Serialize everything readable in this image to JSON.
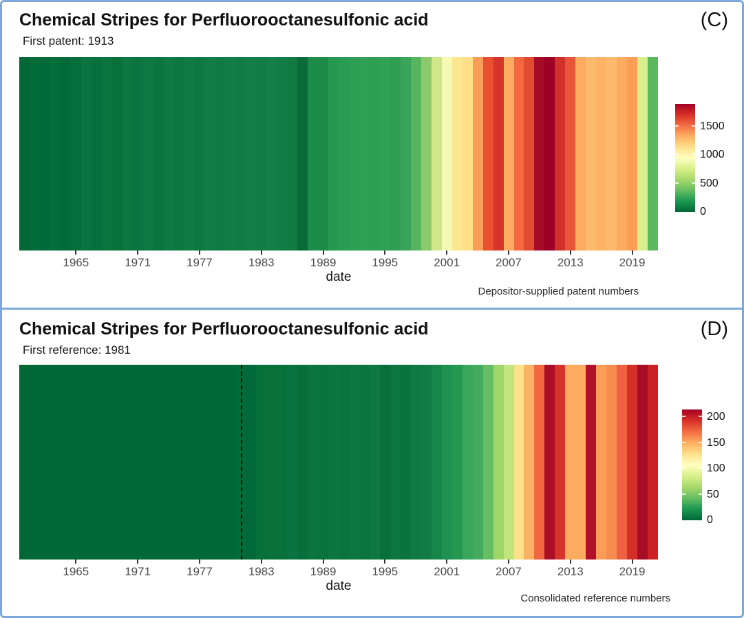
{
  "frame": {
    "border_color": "#7ba7d9"
  },
  "chart_data": [
    {
      "type": "heatmap",
      "panel_label": "(C)",
      "title": "Chemical Stripes for Perfluorooctanesulfonic acid",
      "subtitle": "First patent: 1913",
      "xlabel": "date",
      "caption": "Depositor-supplied patent numbers",
      "x_ticks": [
        1965,
        1971,
        1977,
        1983,
        1989,
        1995,
        2001,
        2007,
        2013,
        2019
      ],
      "x_range": [
        1959.5,
        2021.5
      ],
      "reference_line_year": null,
      "years": [
        1960,
        1961,
        1962,
        1963,
        1964,
        1965,
        1966,
        1967,
        1968,
        1969,
        1970,
        1971,
        1972,
        1973,
        1974,
        1975,
        1976,
        1977,
        1978,
        1979,
        1980,
        1981,
        1982,
        1983,
        1984,
        1985,
        1986,
        1987,
        1988,
        1989,
        1990,
        1991,
        1992,
        1993,
        1994,
        1995,
        1996,
        1997,
        1998,
        1999,
        2000,
        2001,
        2002,
        2003,
        2004,
        2005,
        2006,
        2007,
        2008,
        2009,
        2010,
        2011,
        2012,
        2013,
        2014,
        2015,
        2016,
        2017,
        2018,
        2019,
        2020,
        2021
      ],
      "values": [
        5,
        8,
        6,
        9,
        7,
        11,
        20,
        12,
        22,
        14,
        25,
        20,
        27,
        22,
        30,
        25,
        32,
        28,
        35,
        30,
        38,
        33,
        40,
        35,
        42,
        38,
        55,
        25,
        90,
        95,
        130,
        140,
        150,
        160,
        150,
        165,
        155,
        185,
        280,
        430,
        620,
        850,
        920,
        960,
        1190,
        1500,
        1560,
        1170,
        1330,
        1420,
        1740,
        1820,
        1550,
        1480,
        1170,
        1120,
        1140,
        1120,
        1180,
        1210,
        480,
        330
      ],
      "colors": [
        "#006837",
        "#036c39",
        "#01693a",
        "#046e3a",
        "#026a38",
        "#056f3b",
        "#0a7440",
        "#05703c",
        "#0b7540",
        "#077139",
        "#0d7742",
        "#0a7440",
        "#0e7843",
        "#0b7540",
        "#107a44",
        "#0d7742",
        "#117b45",
        "#0e7843",
        "#127c46",
        "#107a44",
        "#137d47",
        "#117b45",
        "#147e48",
        "#127c46",
        "#157f49",
        "#137d47",
        "#107a40",
        "#096b38",
        "#1b8c4a",
        "#1e8c48",
        "#26994f",
        "#2a9b52",
        "#2d9e53",
        "#2fa055",
        "#2d9e52",
        "#31a156",
        "#2f9e53",
        "#3aa55a",
        "#57b45f",
        "#8cc96a",
        "#cfe788",
        "#f4f9b4",
        "#fbe792",
        "#fede88",
        "#fb9d59",
        "#e8502f",
        "#d5352b",
        "#fcab61",
        "#f2693f",
        "#e14b2f",
        "#a50b26",
        "#9c0026",
        "#d12f2a",
        "#e95538",
        "#fcab61",
        "#fdb96e",
        "#fdb366",
        "#fdb96e",
        "#fcab5f",
        "#fb9d55",
        "#d9ef8b",
        "#5cb85e"
      ],
      "colorbar": {
        "ticks": [
          0,
          500,
          1000,
          1500
        ],
        "max": 1900,
        "gradient_bottom_to_top": [
          "#006837",
          "#1a9850",
          "#66bd63",
          "#a6d96a",
          "#d9ef8b",
          "#ffffbf",
          "#fee08b",
          "#fdae61",
          "#f46d43",
          "#d73027",
          "#a50026"
        ]
      }
    },
    {
      "type": "heatmap",
      "panel_label": "(D)",
      "title": "Chemical Stripes for Perfluorooctanesulfonic acid",
      "subtitle": "First reference: 1981",
      "xlabel": "date",
      "caption": "Consolidated reference numbers",
      "x_ticks": [
        1965,
        1971,
        1977,
        1983,
        1989,
        1995,
        2001,
        2007,
        2013,
        2019
      ],
      "x_range": [
        1959.5,
        2021.5
      ],
      "reference_line_year": 1981,
      "years": [
        1960,
        1961,
        1962,
        1963,
        1964,
        1965,
        1966,
        1967,
        1968,
        1969,
        1970,
        1971,
        1972,
        1973,
        1974,
        1975,
        1976,
        1977,
        1978,
        1979,
        1980,
        1981,
        1982,
        1983,
        1984,
        1985,
        1986,
        1987,
        1988,
        1989,
        1990,
        1991,
        1992,
        1993,
        1994,
        1995,
        1996,
        1997,
        1998,
        1999,
        2000,
        2001,
        2002,
        2003,
        2004,
        2005,
        2006,
        2007,
        2008,
        2009,
        2010,
        2011,
        2012,
        2013,
        2014,
        2015,
        2016,
        2017,
        2018,
        2019,
        2020,
        2021
      ],
      "values": [
        0,
        0,
        0,
        0,
        0,
        0,
        0,
        0,
        0,
        0,
        0,
        0,
        0,
        0,
        0,
        0,
        0,
        0,
        0,
        0,
        0,
        1,
        1,
        2,
        3,
        2,
        3,
        2,
        3,
        3,
        4,
        3,
        4,
        4,
        5,
        3,
        4,
        4,
        6,
        7,
        12,
        22,
        28,
        45,
        50,
        65,
        90,
        100,
        115,
        135,
        165,
        205,
        185,
        150,
        150,
        200,
        145,
        155,
        170,
        185,
        210,
        190
      ],
      "colors": [
        "#006837",
        "#006837",
        "#006837",
        "#006837",
        "#006837",
        "#006837",
        "#006837",
        "#006837",
        "#006837",
        "#006837",
        "#006837",
        "#006837",
        "#006837",
        "#006837",
        "#006837",
        "#006837",
        "#006837",
        "#006837",
        "#006837",
        "#006837",
        "#006837",
        "#026b39",
        "#016939",
        "#077039",
        "#0a7239",
        "#08703a",
        "#0b7340",
        "#096f3a",
        "#0c743e",
        "#0a723c",
        "#0d7540",
        "#0b733e",
        "#0e7641",
        "#0c743f",
        "#0f7742",
        "#0a7039",
        "#0d753f",
        "#0b733d",
        "#117a42",
        "#137c44",
        "#18854a",
        "#1f9150",
        "#259750",
        "#3ba75c",
        "#44ab5e",
        "#66bd63",
        "#a0d669",
        "#c0e47e",
        "#fce08a",
        "#fdb163",
        "#f26841",
        "#ab0e26",
        "#d7332b",
        "#fcab60",
        "#fcab60",
        "#b3112a",
        "#fb9d58",
        "#f68c50",
        "#ef6241",
        "#d52f2b",
        "#a50e26",
        "#cc2027"
      ],
      "colorbar": {
        "ticks": [
          0,
          50,
          100,
          150,
          200
        ],
        "max": 215,
        "gradient_bottom_to_top": [
          "#006837",
          "#1a9850",
          "#66bd63",
          "#a6d96a",
          "#d9ef8b",
          "#ffffbf",
          "#fee08b",
          "#fdae61",
          "#f46d43",
          "#d73027",
          "#a50026"
        ]
      }
    }
  ]
}
